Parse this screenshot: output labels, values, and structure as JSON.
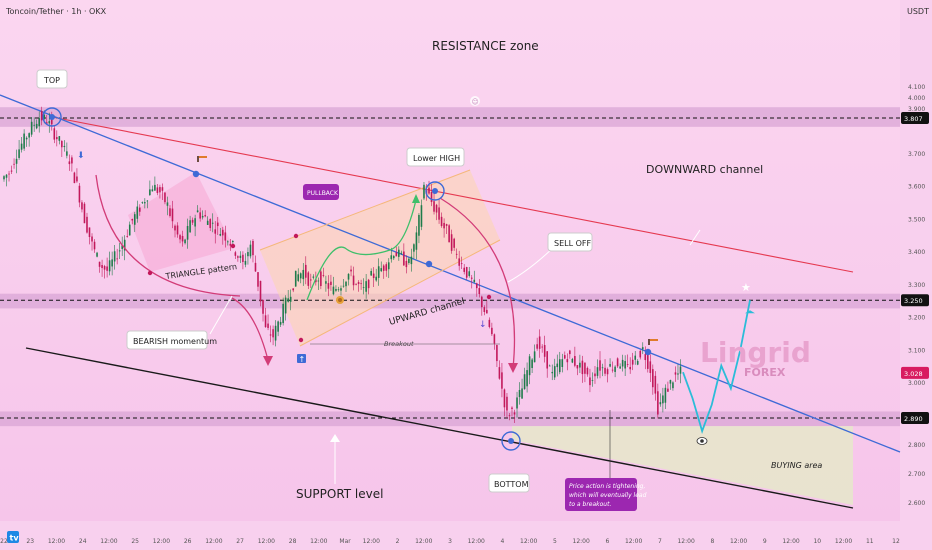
{
  "header": {
    "symbol": "Toncoin/Tether · 1h · OKX",
    "currency": "USDT"
  },
  "colors": {
    "background": "#f6c6ea",
    "bull_candle": "#1e7b4a",
    "bear_candle": "#c2185b",
    "downward_channel_line": "#e53950",
    "trend_line": "#3e6ad6",
    "support_line": "#1a1a1a",
    "zone_band": "#d9a6d6",
    "buying_area": "#e7e6cc",
    "marker_blue": "#3e6ad6",
    "arrow_green": "#3ebf6a",
    "arrow_cyan": "#2bbcd8",
    "arrow_pink": "#d23c78",
    "callout_purple": "#9c27b0",
    "price_tag": "#d81b60"
  },
  "annotations": {
    "resistance_zone": "RESISTANCE zone",
    "top": "TOP",
    "lower_high": "Lower HIGH",
    "downward_channel": "DOWNWARD channel",
    "pullback": "PULLBACK",
    "sell_off": "SELL OFF",
    "triangle_pattern": "TRIANGLE pattern",
    "upward_channel": "UPWARD channel",
    "breakout": "Breakout",
    "bearish_momentum": "BEARISH momentum",
    "bottom": "BOTTOM",
    "support_level": "SUPPORT level",
    "buying_area": "BUYING area",
    "price_action_note": [
      "Price action is tightening,",
      "which will eventually lead",
      "to a breakout."
    ]
  },
  "watermark": {
    "line1": "Lingrid",
    "line2": "FOREX"
  },
  "chart_data": {
    "type": "candlestick",
    "title": "Toncoin/Tether · 1h · OKX",
    "ylabel": "USDT",
    "ylim": [
      2.55,
      4.2
    ],
    "y_ticks": [
      "4.100",
      "4.000",
      "3.900",
      "3.700",
      "3.600",
      "3.500",
      "3.400",
      "3.300",
      "3.200",
      "3.100",
      "3.000",
      "2.800",
      "2.700",
      "2.600"
    ],
    "x_ticks": [
      "22",
      "23",
      "12:00",
      "24",
      "12:00",
      "25",
      "12:00",
      "26",
      "12:00",
      "27",
      "12:00",
      "28",
      "12:00",
      "Mar",
      "12:00",
      "2",
      "12:00",
      "3",
      "12:00",
      "4",
      "12:00",
      "5",
      "12:00",
      "6",
      "12:00",
      "7",
      "12:00",
      "8",
      "12:00",
      "9",
      "12:00",
      "10",
      "12:00",
      "11",
      "12"
    ],
    "price_labels": [
      {
        "value": 3.807,
        "label": "3.807"
      },
      {
        "value": 3.25,
        "label": "3.250"
      },
      {
        "value": 3.028,
        "label": "3.028",
        "current": true
      },
      {
        "value": 2.89,
        "label": "2.890"
      }
    ],
    "zones": [
      {
        "name": "resistance",
        "from": 3.78,
        "to": 3.84
      },
      {
        "name": "mid",
        "from": 3.225,
        "to": 3.27
      },
      {
        "name": "support",
        "from": 2.865,
        "to": 2.91
      }
    ],
    "series": [
      {
        "name": "price_path",
        "values": [
          3.62,
          3.64,
          3.7,
          3.74,
          3.78,
          3.81,
          3.8,
          3.76,
          3.72,
          3.68,
          3.6,
          3.5,
          3.42,
          3.36,
          3.34,
          3.38,
          3.42,
          3.48,
          3.52,
          3.56,
          3.6,
          3.58,
          3.54,
          3.46,
          3.42,
          3.48,
          3.52,
          3.5,
          3.48,
          3.46,
          3.44,
          3.4,
          3.36,
          3.42,
          3.3,
          3.16,
          3.14,
          3.2,
          3.26,
          3.32,
          3.34,
          3.3,
          3.32,
          3.3,
          3.28,
          3.3,
          3.33,
          3.3,
          3.28,
          3.32,
          3.34,
          3.36,
          3.4,
          3.38,
          3.36,
          3.44,
          3.6,
          3.55,
          3.5,
          3.46,
          3.4,
          3.36,
          3.32,
          3.28,
          3.22,
          3.14,
          3.02,
          2.9,
          2.92,
          2.98,
          3.06,
          3.12,
          3.08,
          3.02,
          3.06,
          3.08,
          3.06,
          3.04,
          3.0,
          3.05,
          3.04,
          3.05,
          3.06,
          3.04,
          3.07,
          3.1,
          3.04,
          2.92,
          2.97,
          3.01,
          3.03
        ]
      }
    ],
    "projection": [
      3.03,
      2.95,
      2.85,
      2.93,
      3.05,
      2.98,
      3.1,
      3.25
    ]
  }
}
